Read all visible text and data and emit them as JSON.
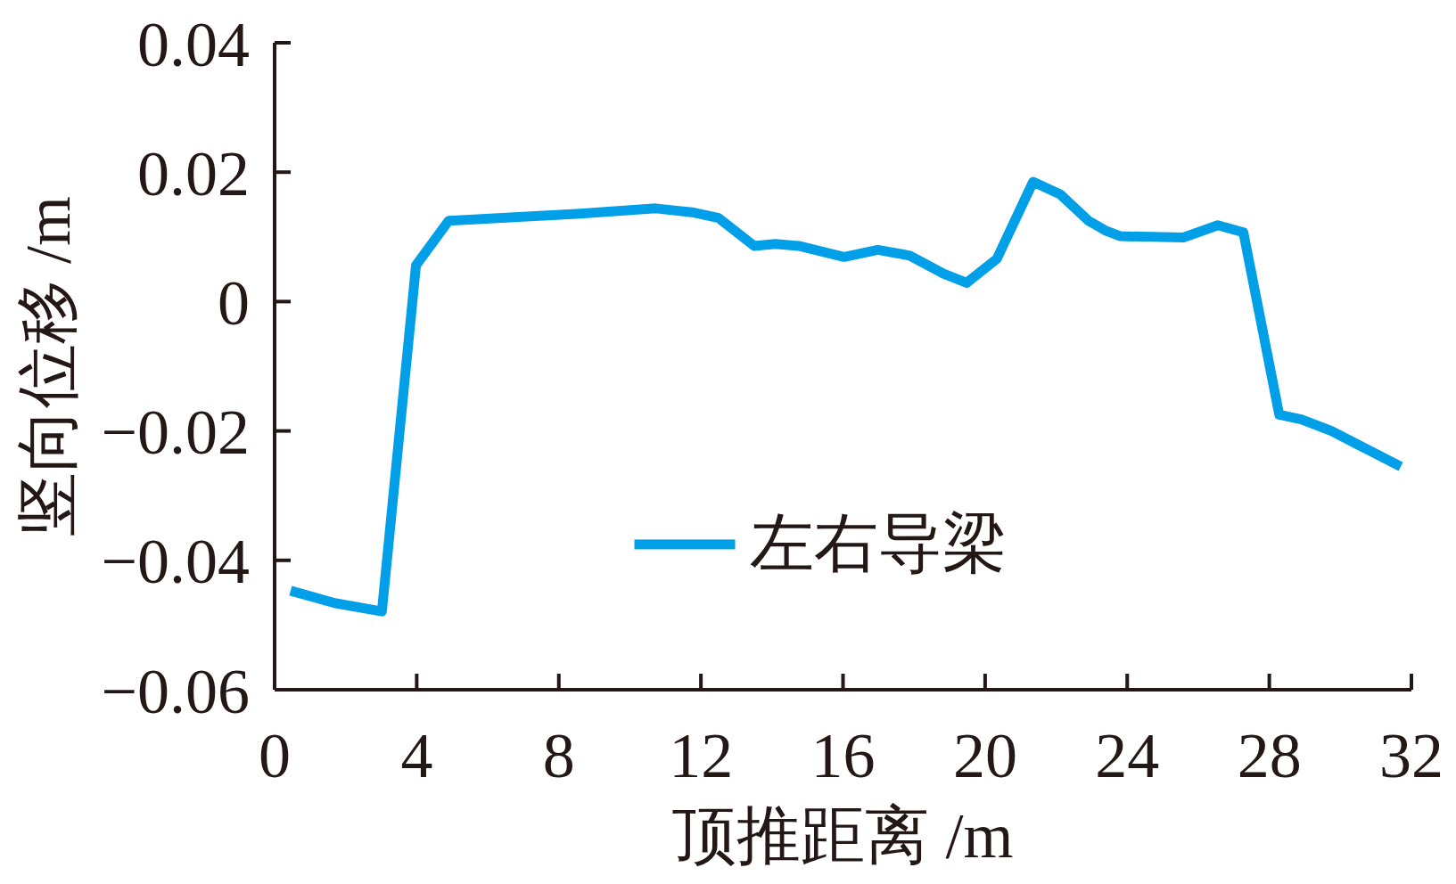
{
  "chart_data": {
    "type": "line",
    "xlabel": "顶推距离 /m",
    "ylabel": "竖向位移 /m",
    "x": [
      0.45,
      1.69,
      3.02,
      3.98,
      4.9,
      8.6,
      10.73,
      11.75,
      12.5,
      13.5,
      14.09,
      14.75,
      16.03,
      16.98,
      17.88,
      18.83,
      19.48,
      20.33,
      21.35,
      22.11,
      22.91,
      23.38,
      23.81,
      25.58,
      26.55,
      27.27,
      28.28,
      28.9,
      29.75,
      30.7,
      31.7
    ],
    "series": [
      {
        "name": "左右导梁",
        "color": "#009fe8",
        "values": [
          -0.0447,
          -0.0466,
          -0.0479,
          0.0056,
          0.0125,
          0.0136,
          0.0144,
          0.0138,
          0.0129,
          0.0086,
          0.0089,
          0.0086,
          0.0069,
          0.008,
          0.0071,
          0.0043,
          0.0029,
          0.0066,
          0.0185,
          0.0166,
          0.0125,
          0.011,
          0.0101,
          0.0099,
          0.0118,
          0.0107,
          -0.0175,
          -0.0182,
          -0.02,
          -0.0227,
          -0.0255
        ]
      }
    ],
    "xlim": [
      0,
      32
    ],
    "xticks": [
      0,
      4,
      8,
      12,
      16,
      20,
      24,
      28,
      32
    ],
    "ylim": [
      -0.06,
      0.04
    ],
    "yticks": [
      {
        "value": -0.06,
        "label": "−0.06"
      },
      {
        "value": -0.04,
        "label": "−0.04"
      },
      {
        "value": -0.02,
        "label": "−0.02"
      },
      0,
      0.02,
      0.04
    ],
    "legend": "bottom",
    "line_style": "solid"
  }
}
